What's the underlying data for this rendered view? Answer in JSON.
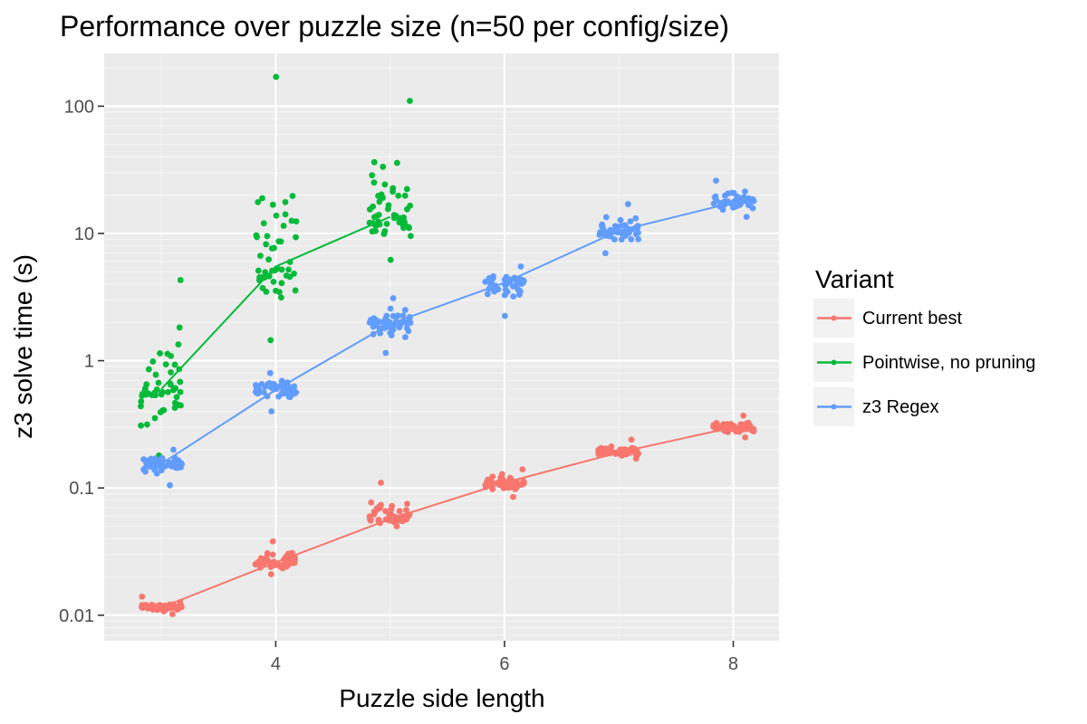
{
  "chart_data": {
    "type": "scatter",
    "title": "Performance over puzzle size (n=50 per config/size)",
    "xlabel": "Puzzle side length",
    "ylabel": "z3 solve time (s)",
    "x_ticks": [
      4,
      6,
      8
    ],
    "x_tick_labels": [
      "4",
      "6",
      "8"
    ],
    "y_ticks": [
      0.01,
      0.1,
      1,
      10,
      100
    ],
    "y_tick_labels": [
      "0.01",
      "0.1",
      "1",
      "10",
      "100"
    ],
    "xlim": [
      2.5,
      8.4
    ],
    "ylim": [
      0.0063,
      260
    ],
    "y_scale": "log",
    "grid": true,
    "points_per_group": 50,
    "legend": {
      "title": "Variant",
      "position": "right"
    },
    "series": [
      {
        "name": "Current best",
        "color": "#f8766d",
        "x": [
          3,
          4,
          5,
          6,
          7,
          8
        ],
        "median": [
          0.0115,
          0.026,
          0.057,
          0.11,
          0.19,
          0.3
        ],
        "spread_min": [
          0.0102,
          0.021,
          0.05,
          0.085,
          0.17,
          0.25
        ],
        "spread_max": [
          0.014,
          0.038,
          0.11,
          0.14,
          0.24,
          0.37
        ]
      },
      {
        "name": "Pointwise, no pruning",
        "color": "#00ba38",
        "x": [
          3,
          4,
          5
        ],
        "median": [
          0.6,
          5.5,
          13.5
        ],
        "spread_min": [
          0.18,
          1.45,
          6.2
        ],
        "spread_max": [
          4.3,
          170,
          110
        ]
      },
      {
        "name": "z3 Regex",
        "color": "#619cff",
        "x": [
          3,
          4,
          5,
          6,
          7,
          8
        ],
        "median": [
          0.155,
          0.59,
          1.95,
          4.1,
          10.5,
          17.5
        ],
        "spread_min": [
          0.105,
          0.4,
          1.15,
          2.25,
          7,
          13.5
        ],
        "spread_max": [
          0.2,
          0.8,
          3.1,
          5.5,
          17,
          26
        ]
      }
    ]
  }
}
